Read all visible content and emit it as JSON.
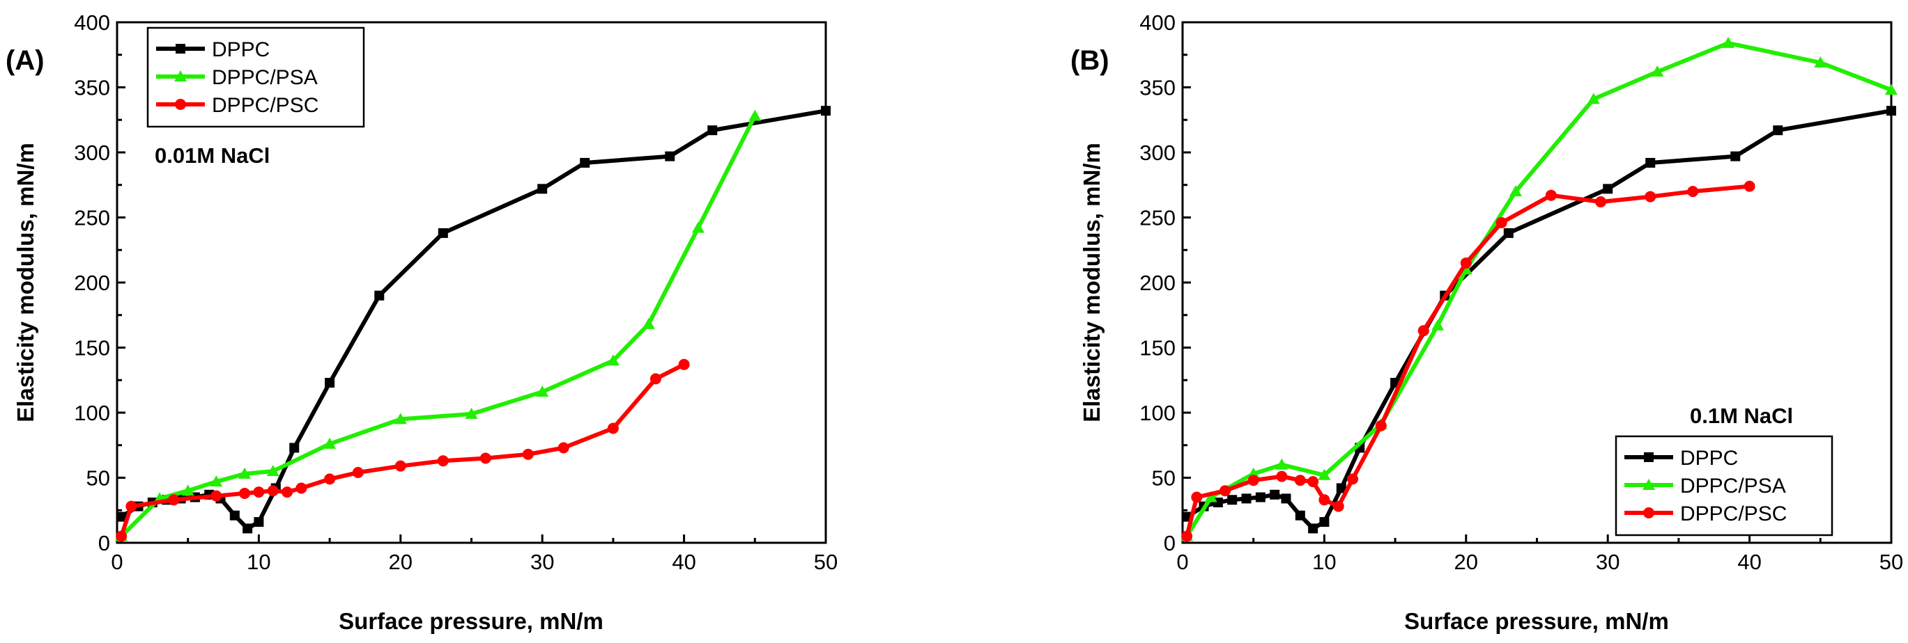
{
  "chart_data": [
    {
      "type": "line",
      "panel_label": "(A)",
      "annotation": "0.01M NaCl",
      "xlabel": "Surface pressure, mN/m",
      "ylabel": "Elasticity modulus, mN/m",
      "xlim": [
        0,
        50
      ],
      "ylim": [
        0,
        400
      ],
      "xticks": [
        0,
        10,
        20,
        30,
        40,
        50
      ],
      "yticks": [
        0,
        50,
        100,
        150,
        200,
        250,
        300,
        350,
        400
      ],
      "legend_position": "top-left",
      "series": [
        {
          "name": "DPPC",
          "color": "#000000",
          "marker": "square",
          "x": [
            0.3,
            1.5,
            2.5,
            3.5,
            4.5,
            5.5,
            6.5,
            7.3,
            8.3,
            9.2,
            10.0,
            11.2,
            12.5,
            15.0,
            18.5,
            23.0,
            30.0,
            33.0,
            39.0,
            42.0,
            50.0
          ],
          "y": [
            20,
            28,
            31,
            33,
            34,
            35,
            37,
            34,
            21,
            11,
            16,
            42,
            73,
            123,
            190,
            238,
            272,
            292,
            297,
            317,
            332
          ]
        },
        {
          "name": "DPPC/PSA",
          "color": "#22ee00",
          "marker": "triangle",
          "x": [
            0.3,
            3.0,
            5.0,
            7.0,
            9.0,
            11.0,
            15.0,
            20.0,
            25.0,
            30.0,
            35.0,
            37.5,
            41.0,
            45.0
          ],
          "y": [
            5,
            34,
            40,
            47,
            53,
            55,
            76,
            95,
            99,
            116,
            140,
            168,
            242,
            328
          ]
        },
        {
          "name": "DPPC/PSC",
          "color": "#ff0000",
          "marker": "circle",
          "x": [
            0.3,
            1.0,
            4.0,
            7.0,
            9.0,
            10.0,
            11.0,
            12.0,
            13.0,
            15.0,
            17.0,
            20.0,
            23.0,
            26.0,
            29.0,
            31.5,
            35.0,
            38.0,
            40.0
          ],
          "y": [
            5,
            28,
            33,
            36,
            38,
            39,
            40,
            39,
            42,
            49,
            54,
            59,
            63,
            65,
            68,
            73,
            88,
            126,
            137
          ]
        }
      ]
    },
    {
      "type": "line",
      "panel_label": "(B)",
      "annotation": "0.1M NaCl",
      "xlabel": "Surface pressure, mN/m",
      "ylabel": "Elasticity modulus, mN/m",
      "xlim": [
        0,
        50
      ],
      "ylim": [
        0,
        400
      ],
      "xticks": [
        0,
        10,
        20,
        30,
        40,
        50
      ],
      "yticks": [
        0,
        50,
        100,
        150,
        200,
        250,
        300,
        350,
        400
      ],
      "legend_position": "bottom-right",
      "series": [
        {
          "name": "DPPC",
          "color": "#000000",
          "marker": "square",
          "x": [
            0.3,
            1.5,
            2.5,
            3.5,
            4.5,
            5.5,
            6.5,
            7.3,
            8.3,
            9.2,
            10.0,
            11.2,
            12.5,
            15.0,
            18.5,
            23.0,
            30.0,
            33.0,
            39.0,
            42.0,
            50.0
          ],
          "y": [
            20,
            28,
            31,
            33,
            34,
            35,
            37,
            34,
            21,
            11,
            16,
            42,
            73,
            123,
            190,
            238,
            272,
            292,
            297,
            317,
            332
          ]
        },
        {
          "name": "DPPC/PSA",
          "color": "#22ee00",
          "marker": "triangle",
          "x": [
            0.3,
            2.0,
            5.0,
            7.0,
            10.0,
            14.0,
            18.0,
            20.0,
            23.5,
            29.0,
            33.5,
            38.5,
            45.0,
            50.0
          ],
          "y": [
            5,
            35,
            53,
            60,
            52,
            91,
            167,
            210,
            270,
            341,
            362,
            384,
            369,
            348
          ]
        },
        {
          "name": "DPPC/PSC",
          "color": "#ff0000",
          "marker": "circle",
          "x": [
            0.3,
            1.0,
            3.0,
            5.0,
            7.0,
            8.3,
            9.2,
            10.0,
            11.0,
            12.0,
            14.0,
            17.0,
            20.0,
            22.5,
            26.0,
            29.5,
            33.0,
            36.0,
            40.0
          ],
          "y": [
            5,
            35,
            40,
            48,
            51,
            48,
            47,
            33,
            28,
            49,
            90,
            163,
            215,
            246,
            267,
            262,
            266,
            270,
            274
          ]
        }
      ]
    }
  ]
}
